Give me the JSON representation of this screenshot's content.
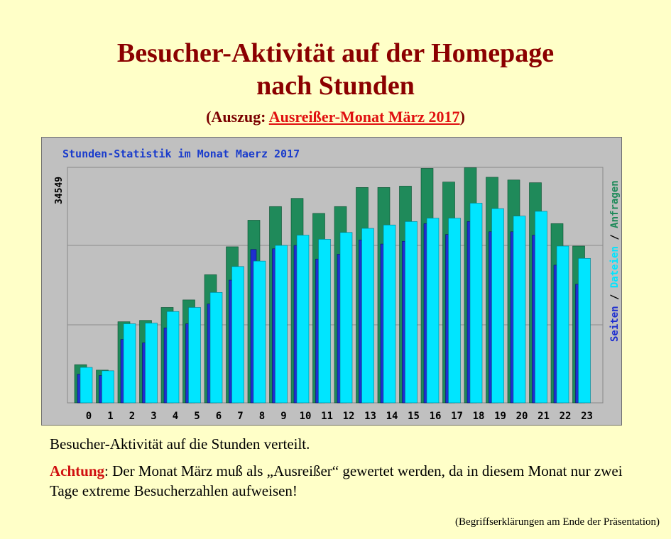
{
  "slide": {
    "title_line1": "Besucher-Aktivität auf der Homepage",
    "title_line2": "nach Stunden",
    "subtitle_open": "(Auszug: ",
    "subtitle_link": "Ausreißer-Monat März 2017",
    "subtitle_close": ")",
    "caption": "Besucher-Aktivität auf die Stunden verteilt.",
    "warning_label": "Achtung",
    "warning_text": ": Der Monat März muß als „Ausreißer“ gewertet werden, da in diesem Monat nur zwei Tage extreme Besucherzahlen aufweisen!",
    "footnote": "(Begriffserklärungen am Ende der Präsentation)"
  },
  "colors": {
    "background": "#ffffc8",
    "title": "#8b0000",
    "link": "#e01010",
    "anfragen": "#1f8a5a",
    "dateien": "#00e5ff",
    "seiten": "#1f2fd0",
    "chart_title": "#1a3ccc"
  },
  "chart_data": {
    "type": "bar",
    "title": "Stunden-Statistik im Monat Maerz 2017",
    "ymax_label": "34549",
    "ylim": [
      0,
      34549
    ],
    "grid": true,
    "legend_placement": "right-vertical",
    "legend": [
      "Seiten",
      "Dateien",
      "Anfragen"
    ],
    "legend_separator": " / ",
    "categories": [
      "0",
      "1",
      "2",
      "3",
      "4",
      "5",
      "6",
      "7",
      "8",
      "9",
      "10",
      "11",
      "12",
      "13",
      "14",
      "15",
      "16",
      "17",
      "18",
      "19",
      "20",
      "21",
      "22",
      "23"
    ],
    "series": [
      {
        "name": "Anfragen",
        "values": [
          5600,
          4800,
          11900,
          12100,
          14000,
          15100,
          18800,
          22900,
          26800,
          28800,
          30000,
          27800,
          28800,
          31600,
          31600,
          31800,
          34400,
          32400,
          34500,
          33100,
          32700,
          32300,
          26300,
          23000
        ]
      },
      {
        "name": "Dateien",
        "values": [
          5200,
          4700,
          11600,
          11700,
          13400,
          14000,
          16200,
          20000,
          20800,
          23100,
          24600,
          24000,
          25000,
          25600,
          26100,
          26600,
          27100,
          27100,
          29300,
          28500,
          27400,
          28100,
          23000,
          21200
        ]
      },
      {
        "name": "Seiten",
        "values": [
          4200,
          4000,
          9300,
          8800,
          11000,
          11600,
          14500,
          18000,
          22500,
          22600,
          23100,
          21100,
          21800,
          23900,
          23300,
          23700,
          26300,
          24700,
          26600,
          25100,
          25100,
          24600,
          20200,
          17400
        ]
      }
    ]
  }
}
